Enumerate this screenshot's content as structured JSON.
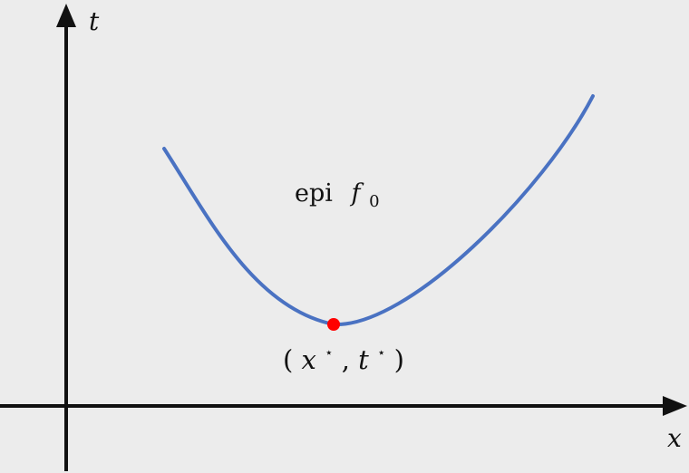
{
  "axes": {
    "vertical_label": "t",
    "horizontal_label": "x"
  },
  "region_label": {
    "word": "epi",
    "function_letter": "f",
    "subscript": "0"
  },
  "optimal_point": {
    "open_paren": "(",
    "x_symbol": "x",
    "star": "⋆",
    "comma": ",",
    "t_symbol": "t",
    "close_paren": ")"
  },
  "colors": {
    "curve": "#4a72c2",
    "point": "#ff0000",
    "axis": "#111111",
    "background": "#ececec"
  }
}
